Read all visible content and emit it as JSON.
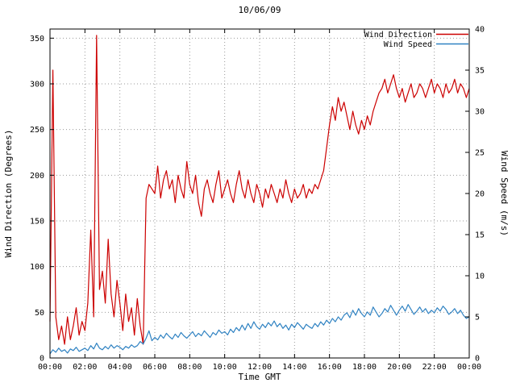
{
  "page": {
    "background": "#ffffff"
  },
  "chart_data": {
    "type": "line",
    "title": "10/06/09",
    "xlabel": "Time GMT",
    "grid": true,
    "legend_position": "top-right",
    "x_axis": {
      "min_hours": 0,
      "max_hours": 24,
      "tick_step_hours": 2,
      "minutes_per_point": 10,
      "tick_labels": [
        "00:00",
        "02:00",
        "04:00",
        "06:00",
        "08:00",
        "10:00",
        "12:00",
        "14:00",
        "16:00",
        "18:00",
        "20:00",
        "22:00",
        "00:00"
      ]
    },
    "left_axis": {
      "label": "Wind Direction (Degrees)",
      "min": 0,
      "max": 360,
      "ticks": [
        0,
        50,
        100,
        150,
        200,
        250,
        300,
        350
      ]
    },
    "right_axis": {
      "label": "Wind Speed (m/s)",
      "min": 0,
      "max": 40,
      "ticks": [
        0,
        5,
        10,
        15,
        20,
        25,
        30,
        35,
        40
      ]
    },
    "series": [
      {
        "name": "Wind Direction",
        "axis": "left",
        "color": "#cc0000",
        "values": [
          40,
          315,
          45,
          20,
          35,
          15,
          45,
          20,
          35,
          55,
          25,
          40,
          30,
          60,
          140,
          45,
          353,
          75,
          95,
          60,
          130,
          70,
          45,
          85,
          60,
          30,
          70,
          40,
          55,
          25,
          65,
          35,
          15,
          175,
          190,
          185,
          180,
          210,
          175,
          195,
          205,
          185,
          195,
          170,
          200,
          185,
          175,
          215,
          190,
          180,
          200,
          170,
          155,
          185,
          195,
          180,
          170,
          190,
          205,
          175,
          185,
          195,
          180,
          170,
          190,
          205,
          185,
          175,
          195,
          180,
          170,
          190,
          180,
          165,
          185,
          175,
          190,
          180,
          170,
          185,
          175,
          195,
          180,
          170,
          185,
          175,
          180,
          190,
          175,
          185,
          180,
          190,
          185,
          195,
          205,
          230,
          255,
          275,
          260,
          285,
          270,
          280,
          265,
          250,
          270,
          255,
          245,
          260,
          250,
          265,
          255,
          270,
          280,
          290,
          295,
          305,
          290,
          300,
          310,
          295,
          285,
          295,
          280,
          290,
          300,
          285,
          290,
          300,
          295,
          285,
          295,
          305,
          290,
          300,
          295,
          285,
          300,
          290,
          295,
          305,
          290,
          300,
          295,
          285,
          295
        ]
      },
      {
        "name": "Wind Speed",
        "axis": "right",
        "color": "#2f82c2",
        "values": [
          0.5,
          1.0,
          0.7,
          1.2,
          0.8,
          1.0,
          0.6,
          1.1,
          0.9,
          1.3,
          0.8,
          1.0,
          1.2,
          0.9,
          1.5,
          1.1,
          1.8,
          1.2,
          1.0,
          1.4,
          1.1,
          1.6,
          1.2,
          1.5,
          1.3,
          1.0,
          1.4,
          1.2,
          1.6,
          1.3,
          1.5,
          2.0,
          1.7,
          2.4,
          3.3,
          2.1,
          2.5,
          2.2,
          2.8,
          2.4,
          3.0,
          2.6,
          2.3,
          2.9,
          2.5,
          3.1,
          2.7,
          2.4,
          2.8,
          3.2,
          2.6,
          3.0,
          2.7,
          3.3,
          2.9,
          2.5,
          3.1,
          2.8,
          3.4,
          3.0,
          3.2,
          2.8,
          3.5,
          3.1,
          3.7,
          3.3,
          4.0,
          3.4,
          4.2,
          3.6,
          4.4,
          3.8,
          3.5,
          4.1,
          3.7,
          4.3,
          3.9,
          4.5,
          3.8,
          4.2,
          3.6,
          4.0,
          3.4,
          4.1,
          3.7,
          4.3,
          3.9,
          3.5,
          4.1,
          3.8,
          3.6,
          4.2,
          3.8,
          4.4,
          4.0,
          4.6,
          4.2,
          4.8,
          4.4,
          5.0,
          4.6,
          5.2,
          5.5,
          4.9,
          5.8,
          5.2,
          6.0,
          5.4,
          5.0,
          5.6,
          5.2,
          6.2,
          5.6,
          5.0,
          5.4,
          6.0,
          5.6,
          6.4,
          5.8,
          5.2,
          5.8,
          6.3,
          5.7,
          6.5,
          5.9,
          5.3,
          5.7,
          6.2,
          5.6,
          6.0,
          5.4,
          5.8,
          5.5,
          6.1,
          5.7,
          6.3,
          5.9,
          5.3,
          5.6,
          6.0,
          5.4,
          5.8,
          5.2,
          4.8,
          5.0
        ]
      }
    ]
  }
}
